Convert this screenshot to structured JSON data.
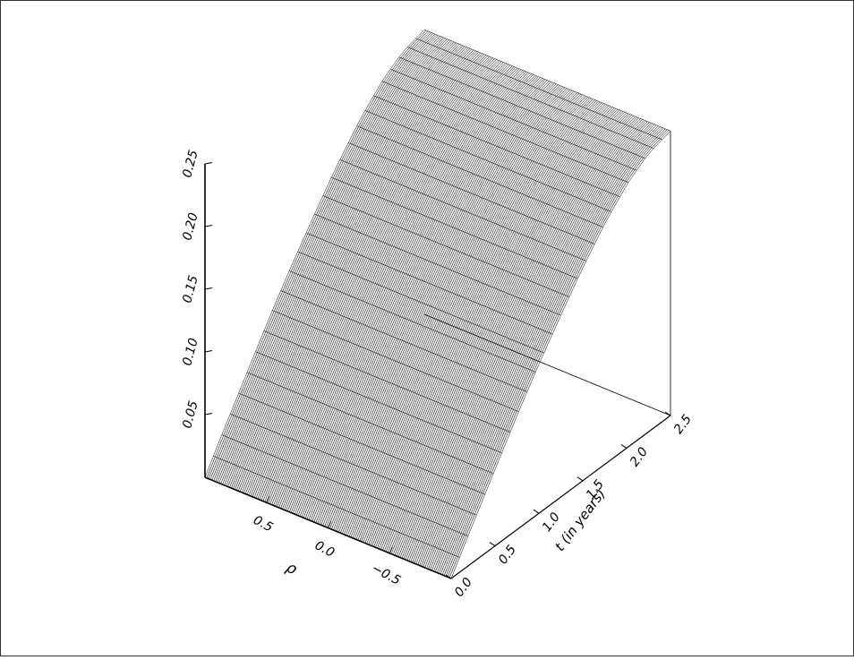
{
  "chart_data": {
    "type": "surface",
    "title": "",
    "xlabel": "ρ",
    "ylabel": "t (in years)",
    "zlabel": "",
    "xlim": [
      -1,
      1
    ],
    "ylim": [
      0,
      2.5
    ],
    "zlim": [
      0,
      0.25
    ],
    "x_ticks": [
      {
        "value": 0.5,
        "label": "0.5"
      },
      {
        "value": 0.0,
        "label": "0.0"
      },
      {
        "value": -0.5,
        "label": "−0.5"
      }
    ],
    "y_ticks": [
      {
        "value": 0.0,
        "label": "0.0"
      },
      {
        "value": 0.5,
        "label": "0.5"
      },
      {
        "value": 1.0,
        "label": "1.0"
      },
      {
        "value": 1.5,
        "label": "1.5"
      },
      {
        "value": 2.0,
        "label": "2.0"
      },
      {
        "value": 2.5,
        "label": "2.5"
      }
    ],
    "z_ticks": [
      {
        "value": 0.05,
        "label": "0.05"
      },
      {
        "value": 0.1,
        "label": "0.10"
      },
      {
        "value": 0.15,
        "label": "0.15"
      },
      {
        "value": 0.2,
        "label": "0.20"
      },
      {
        "value": 0.25,
        "label": "0.25"
      }
    ],
    "surface": {
      "x_grid": [
        -1.0,
        -0.9,
        -0.8,
        -0.7,
        -0.6,
        -0.5,
        -0.4,
        -0.3,
        -0.2,
        -0.1,
        0.0,
        0.1,
        0.2,
        0.3,
        0.4,
        0.5,
        0.6,
        0.7,
        0.8,
        0.9,
        1.0
      ],
      "t_grid": [
        0.0,
        0.25,
        0.5,
        0.75,
        1.0,
        1.25,
        1.5,
        1.75,
        2.0,
        2.25,
        2.5
      ],
      "z_by_t": [
        0.0,
        0.031,
        0.061,
        0.091,
        0.119,
        0.145,
        0.17,
        0.192,
        0.21,
        0.222,
        0.227
      ]
    },
    "grid": false,
    "legend": "none"
  }
}
